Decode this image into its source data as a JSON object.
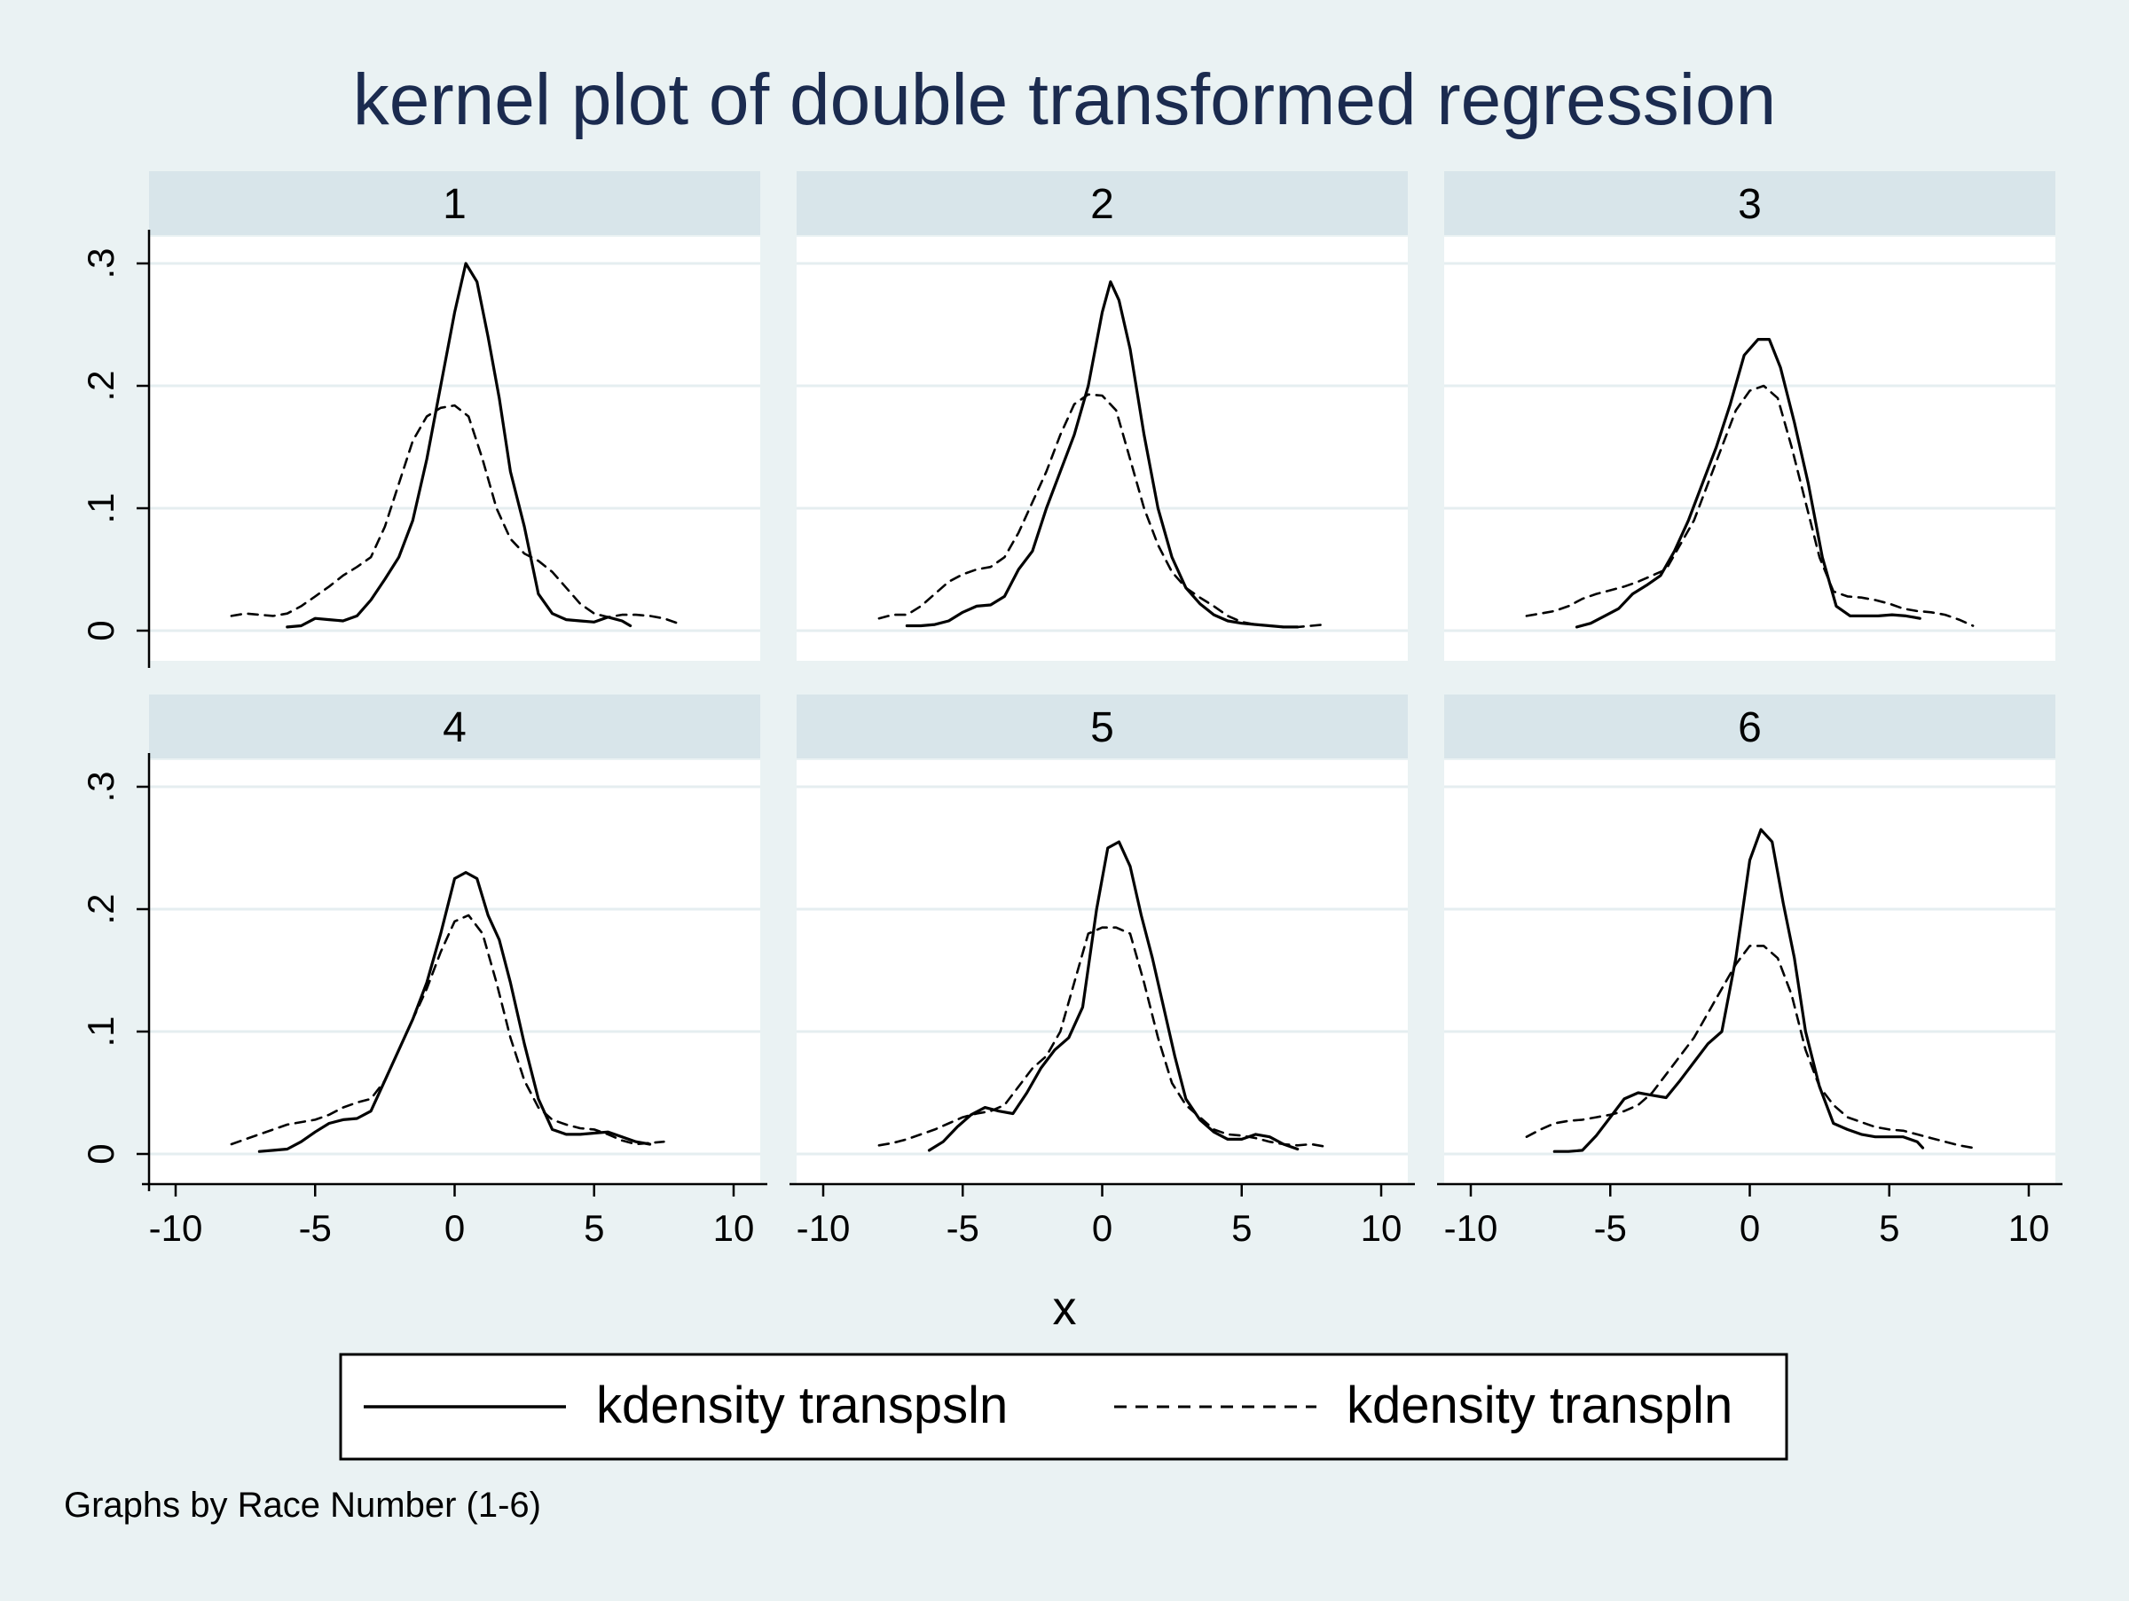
{
  "chart_data": {
    "type": "line",
    "title": "kernel plot of double transformed regression",
    "xlabel": "x",
    "ylabel": "",
    "xlim": [
      -10,
      10
    ],
    "ylim": [
      0,
      0.3
    ],
    "x_ticks": [
      -10,
      -5,
      0,
      5,
      10
    ],
    "x_tick_labels": [
      "-10",
      "-5",
      "0",
      "5",
      "10"
    ],
    "y_ticks": [
      0,
      0.1,
      0.2,
      0.3
    ],
    "y_tick_labels": [
      "0",
      ".1",
      ".2",
      ".3"
    ],
    "grid": true,
    "legend_position": "bottom",
    "note": "Graphs by Race Number (1-6)",
    "legend": [
      {
        "label": "kdensity transpsln",
        "style": "solid"
      },
      {
        "label": "kdensity transpln",
        "style": "dashed"
      }
    ],
    "panels": [
      {
        "label": "1",
        "series": [
          {
            "name": "kdensity transpsln",
            "style": "solid",
            "x": [
              -6,
              -5.5,
              -5,
              -4.5,
              -4,
              -3.5,
              -3,
              -2.5,
              -2,
              -1.5,
              -1,
              -0.5,
              0,
              0.4,
              0.8,
              1.2,
              1.6,
              2,
              2.5,
              3,
              3.5,
              4,
              4.5,
              5,
              5.5,
              6,
              6.3
            ],
            "y": [
              0.003,
              0.004,
              0.01,
              0.009,
              0.008,
              0.012,
              0.025,
              0.042,
              0.06,
              0.09,
              0.14,
              0.2,
              0.26,
              0.3,
              0.285,
              0.24,
              0.19,
              0.13,
              0.085,
              0.03,
              0.014,
              0.009,
              0.008,
              0.007,
              0.011,
              0.008,
              0.004
            ]
          },
          {
            "name": "kdensity transpln",
            "style": "dashed",
            "x": [
              -8,
              -7.5,
              -7,
              -6.5,
              -6,
              -5.5,
              -5,
              -4.5,
              -4,
              -3.5,
              -3,
              -2.5,
              -2,
              -1.5,
              -1,
              -0.5,
              0,
              0.5,
              1,
              1.5,
              2,
              2.5,
              3,
              3.5,
              4,
              4.5,
              5,
              5.5,
              6,
              6.5,
              7,
              7.5,
              8
            ],
            "y": [
              0.012,
              0.014,
              0.013,
              0.012,
              0.014,
              0.02,
              0.028,
              0.036,
              0.045,
              0.052,
              0.06,
              0.085,
              0.12,
              0.155,
              0.175,
              0.182,
              0.184,
              0.175,
              0.14,
              0.1,
              0.075,
              0.063,
              0.057,
              0.048,
              0.035,
              0.022,
              0.014,
              0.011,
              0.013,
              0.013,
              0.012,
              0.01,
              0.006
            ]
          }
        ]
      },
      {
        "label": "2",
        "series": [
          {
            "name": "kdensity transpsln",
            "style": "solid",
            "x": [
              -7,
              -6.5,
              -6,
              -5.5,
              -5,
              -4.5,
              -4,
              -3.5,
              -3,
              -2.5,
              -2,
              -1.5,
              -1,
              -0.5,
              0,
              0.3,
              0.6,
              1,
              1.5,
              2,
              2.5,
              3,
              3.5,
              4,
              4.5,
              5,
              5.5,
              6,
              6.5,
              7
            ],
            "y": [
              0.004,
              0.004,
              0.005,
              0.008,
              0.015,
              0.02,
              0.021,
              0.028,
              0.05,
              0.065,
              0.1,
              0.13,
              0.16,
              0.2,
              0.26,
              0.285,
              0.27,
              0.23,
              0.16,
              0.1,
              0.06,
              0.035,
              0.022,
              0.013,
              0.008,
              0.006,
              0.005,
              0.004,
              0.003,
              0.003
            ]
          },
          {
            "name": "kdensity transpln",
            "style": "dashed",
            "x": [
              -8,
              -7.5,
              -7,
              -6.5,
              -6,
              -5.5,
              -5,
              -4.5,
              -4,
              -3.5,
              -3,
              -2.5,
              -2,
              -1.5,
              -1,
              -0.5,
              0,
              0.5,
              1,
              1.5,
              2,
              2.5,
              3,
              3.5,
              4,
              4.5,
              5,
              5.5,
              6,
              6.5,
              7,
              7.5,
              8
            ],
            "y": [
              0.01,
              0.013,
              0.013,
              0.02,
              0.03,
              0.04,
              0.046,
              0.05,
              0.052,
              0.06,
              0.08,
              0.105,
              0.13,
              0.16,
              0.185,
              0.193,
              0.192,
              0.18,
              0.14,
              0.1,
              0.07,
              0.048,
              0.035,
              0.027,
              0.02,
              0.012,
              0.007,
              0.005,
              0.004,
              0.003,
              0.003,
              0.004,
              0.005
            ]
          }
        ]
      },
      {
        "label": "3",
        "series": [
          {
            "name": "kdensity transpsln",
            "style": "solid",
            "x": [
              -6.2,
              -5.7,
              -5.2,
              -4.7,
              -4.2,
              -3.7,
              -3.2,
              -2.7,
              -2.2,
              -1.7,
              -1.2,
              -0.7,
              -0.2,
              0.3,
              0.7,
              1.1,
              1.6,
              2.1,
              2.6,
              3.1,
              3.6,
              4.1,
              4.6,
              5.1,
              5.6,
              6.1
            ],
            "y": [
              0.003,
              0.006,
              0.012,
              0.018,
              0.03,
              0.037,
              0.045,
              0.065,
              0.09,
              0.12,
              0.15,
              0.185,
              0.225,
              0.238,
              0.238,
              0.215,
              0.17,
              0.12,
              0.06,
              0.02,
              0.012,
              0.012,
              0.012,
              0.013,
              0.012,
              0.01
            ]
          },
          {
            "name": "kdensity transpln",
            "style": "dashed",
            "x": [
              -8,
              -7.5,
              -7,
              -6.5,
              -6,
              -5.5,
              -5,
              -4.5,
              -4,
              -3.5,
              -3,
              -2.5,
              -2,
              -1.5,
              -1,
              -0.5,
              0,
              0.5,
              1,
              1.5,
              2,
              2.5,
              3,
              3.5,
              4,
              4.5,
              5,
              5.5,
              6,
              6.5,
              7,
              7.5,
              8
            ],
            "y": [
              0.012,
              0.014,
              0.016,
              0.02,
              0.026,
              0.03,
              0.033,
              0.036,
              0.04,
              0.045,
              0.05,
              0.07,
              0.09,
              0.12,
              0.15,
              0.18,
              0.196,
              0.2,
              0.19,
              0.15,
              0.105,
              0.06,
              0.032,
              0.028,
              0.027,
              0.025,
              0.022,
              0.018,
              0.016,
              0.015,
              0.013,
              0.009,
              0.004
            ]
          }
        ]
      },
      {
        "label": "4",
        "series": [
          {
            "name": "kdensity transpsln",
            "style": "solid",
            "x": [
              -7,
              -6.5,
              -6,
              -5.5,
              -5,
              -4.5,
              -4,
              -3.5,
              -3,
              -2.5,
              -2,
              -1.5,
              -1,
              -0.5,
              0,
              0.4,
              0.8,
              1.2,
              1.6,
              2,
              2.5,
              3,
              3.5,
              4,
              4.5,
              5,
              5.5,
              6,
              6.5,
              7
            ],
            "y": [
              0.002,
              0.003,
              0.004,
              0.01,
              0.018,
              0.025,
              0.028,
              0.029,
              0.035,
              0.06,
              0.085,
              0.11,
              0.14,
              0.18,
              0.225,
              0.23,
              0.225,
              0.195,
              0.175,
              0.14,
              0.09,
              0.045,
              0.02,
              0.016,
              0.016,
              0.017,
              0.018,
              0.014,
              0.01,
              0.008
            ]
          },
          {
            "name": "kdensity transpln",
            "style": "dashed",
            "x": [
              -8,
              -7.5,
              -7,
              -6.5,
              -6,
              -5.5,
              -5,
              -4.5,
              -4,
              -3.5,
              -3,
              -2.5,
              -2,
              -1.5,
              -1,
              -0.5,
              0,
              0.5,
              1,
              1.5,
              2,
              2.5,
              3,
              3.5,
              4,
              4.5,
              5,
              5.5,
              6,
              6.5,
              7,
              7.5
            ],
            "y": [
              0.008,
              0.012,
              0.016,
              0.02,
              0.024,
              0.026,
              0.028,
              0.032,
              0.038,
              0.042,
              0.045,
              0.06,
              0.085,
              0.11,
              0.135,
              0.165,
              0.19,
              0.195,
              0.18,
              0.14,
              0.095,
              0.06,
              0.038,
              0.028,
              0.024,
              0.021,
              0.02,
              0.016,
              0.011,
              0.008,
              0.009,
              0.01
            ]
          }
        ]
      },
      {
        "label": "5",
        "series": [
          {
            "name": "kdensity transpsln",
            "style": "solid",
            "x": [
              -6.2,
              -5.7,
              -5.2,
              -4.7,
              -4.2,
              -3.7,
              -3.2,
              -2.7,
              -2.2,
              -1.7,
              -1.2,
              -0.7,
              -0.2,
              0.2,
              0.6,
              1,
              1.4,
              1.8,
              2.2,
              2.6,
              3,
              3.5,
              4,
              4.5,
              5,
              5.5,
              6,
              6.5,
              7
            ],
            "y": [
              0.003,
              0.01,
              0.022,
              0.032,
              0.038,
              0.035,
              0.033,
              0.05,
              0.07,
              0.085,
              0.095,
              0.12,
              0.2,
              0.25,
              0.255,
              0.235,
              0.195,
              0.16,
              0.12,
              0.08,
              0.045,
              0.028,
              0.018,
              0.012,
              0.012,
              0.016,
              0.014,
              0.008,
              0.004
            ]
          },
          {
            "name": "kdensity transpln",
            "style": "dashed",
            "x": [
              -8,
              -7.5,
              -7,
              -6.5,
              -6,
              -5.5,
              -5,
              -4.5,
              -4,
              -3.5,
              -3,
              -2.5,
              -2,
              -1.5,
              -1,
              -0.5,
              0,
              0.5,
              1,
              1.5,
              2,
              2.5,
              3,
              3.5,
              4,
              4.5,
              5,
              5.5,
              6,
              6.5,
              7,
              7.5,
              8
            ],
            "y": [
              0.007,
              0.009,
              0.012,
              0.016,
              0.02,
              0.025,
              0.03,
              0.033,
              0.035,
              0.04,
              0.055,
              0.07,
              0.08,
              0.1,
              0.14,
              0.18,
              0.185,
              0.185,
              0.18,
              0.14,
              0.095,
              0.058,
              0.04,
              0.03,
              0.02,
              0.016,
              0.015,
              0.013,
              0.01,
              0.008,
              0.007,
              0.008,
              0.006
            ]
          }
        ]
      },
      {
        "label": "6",
        "series": [
          {
            "name": "kdensity transpsln",
            "style": "solid",
            "x": [
              -7,
              -6.5,
              -6,
              -5.5,
              -5,
              -4.5,
              -4,
              -3.5,
              -3,
              -2.5,
              -2,
              -1.5,
              -1,
              -0.5,
              0,
              0.4,
              0.8,
              1.2,
              1.6,
              2,
              2.5,
              3,
              3.5,
              4,
              4.5,
              5,
              5.5,
              6,
              6.2
            ],
            "y": [
              0.002,
              0.002,
              0.003,
              0.015,
              0.03,
              0.045,
              0.05,
              0.048,
              0.046,
              0.06,
              0.075,
              0.09,
              0.1,
              0.16,
              0.24,
              0.265,
              0.255,
              0.205,
              0.16,
              0.1,
              0.055,
              0.025,
              0.02,
              0.016,
              0.014,
              0.014,
              0.014,
              0.01,
              0.005
            ]
          },
          {
            "name": "kdensity transpln",
            "style": "dashed",
            "x": [
              -8,
              -7.5,
              -7,
              -6.5,
              -6,
              -5.5,
              -5,
              -4.5,
              -4,
              -3.5,
              -3,
              -2.5,
              -2,
              -1.5,
              -1,
              -0.5,
              0,
              0.5,
              1,
              1.5,
              2,
              2.5,
              3,
              3.5,
              4,
              4.5,
              5,
              5.5,
              6,
              6.5,
              7,
              7.5,
              8
            ],
            "y": [
              0.014,
              0.02,
              0.025,
              0.027,
              0.028,
              0.03,
              0.032,
              0.035,
              0.04,
              0.05,
              0.065,
              0.08,
              0.095,
              0.115,
              0.135,
              0.155,
              0.17,
              0.17,
              0.16,
              0.13,
              0.085,
              0.055,
              0.04,
              0.03,
              0.026,
              0.022,
              0.02,
              0.019,
              0.016,
              0.013,
              0.01,
              0.007,
              0.005
            ]
          }
        ]
      }
    ]
  }
}
